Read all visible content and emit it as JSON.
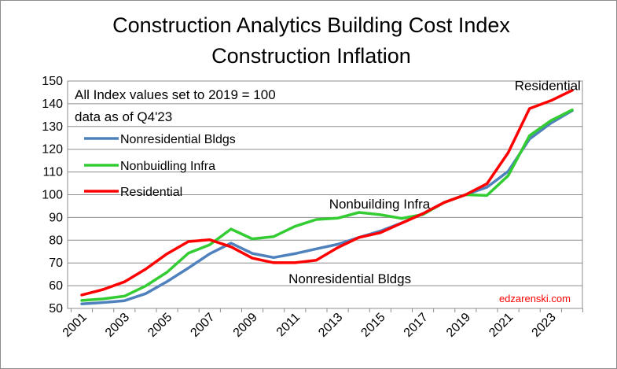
{
  "chart_data": {
    "type": "line",
    "title": "Construction Analytics Building Cost Index",
    "subtitle": "Construction Inflation",
    "xlabel": "",
    "ylabel": "",
    "xlim": [
      2001,
      2024
    ],
    "ylim": [
      50,
      150
    ],
    "y_ticks": [
      50,
      60,
      70,
      80,
      90,
      100,
      110,
      120,
      130,
      140,
      150
    ],
    "x_tick_labels": [
      "2001",
      "2003",
      "2005",
      "2007",
      "2009",
      "2011",
      "2013",
      "2015",
      "2017",
      "2019",
      "2021",
      "2023"
    ],
    "grid": "horizontal",
    "legend_position": "top-left",
    "notes": [
      "All Index values set to 2019 = 100",
      "data as of Q4'23"
    ],
    "annotations": [
      {
        "text": "Residential",
        "x": 2021.3,
        "y": 146
      },
      {
        "text": "Nonbuilding Infra",
        "x": 2012.6,
        "y": 94
      },
      {
        "text": "Nonresidential Bldgs",
        "x": 2010.7,
        "y": 61
      }
    ],
    "watermark": "edzarenski.com",
    "x": [
      2001,
      2002,
      2003,
      2004,
      2005,
      2006,
      2007,
      2008,
      2009,
      2010,
      2011,
      2012,
      2013,
      2014,
      2015,
      2016,
      2017,
      2018,
      2019,
      2020,
      2021,
      2022,
      2023,
      2024
    ],
    "series": [
      {
        "name": "Nonresidential Bldgs",
        "color": "#4f81bd",
        "values": [
          52,
          52.6,
          53.4,
          56.5,
          61.8,
          67.8,
          74,
          78.7,
          74.2,
          72.4,
          74.1,
          76.2,
          78.2,
          81.2,
          84,
          87.6,
          91.7,
          96.6,
          100,
          103.3,
          110.3,
          124.5,
          131.5,
          137
        ]
      },
      {
        "name": "Nonbuidling Infra",
        "color": "#33cc33",
        "values": [
          53.5,
          54.2,
          55.4,
          59.9,
          65.9,
          74.3,
          78,
          84.9,
          80.6,
          81.6,
          86.1,
          89.1,
          89.7,
          92.2,
          91.2,
          89.6,
          91.3,
          96.6,
          100,
          99.7,
          108.4,
          126,
          132.6,
          137.3
        ]
      },
      {
        "name": "Residential",
        "color": "#ff0000",
        "values": [
          55.9,
          58.3,
          61.7,
          67.3,
          74,
          79.4,
          80.2,
          77.1,
          72.1,
          70.1,
          70.1,
          71.2,
          76.7,
          81.2,
          83.3,
          87.5,
          91.7,
          96.6,
          100,
          104.8,
          118.5,
          137.9,
          141.4,
          145.9
        ]
      }
    ]
  }
}
